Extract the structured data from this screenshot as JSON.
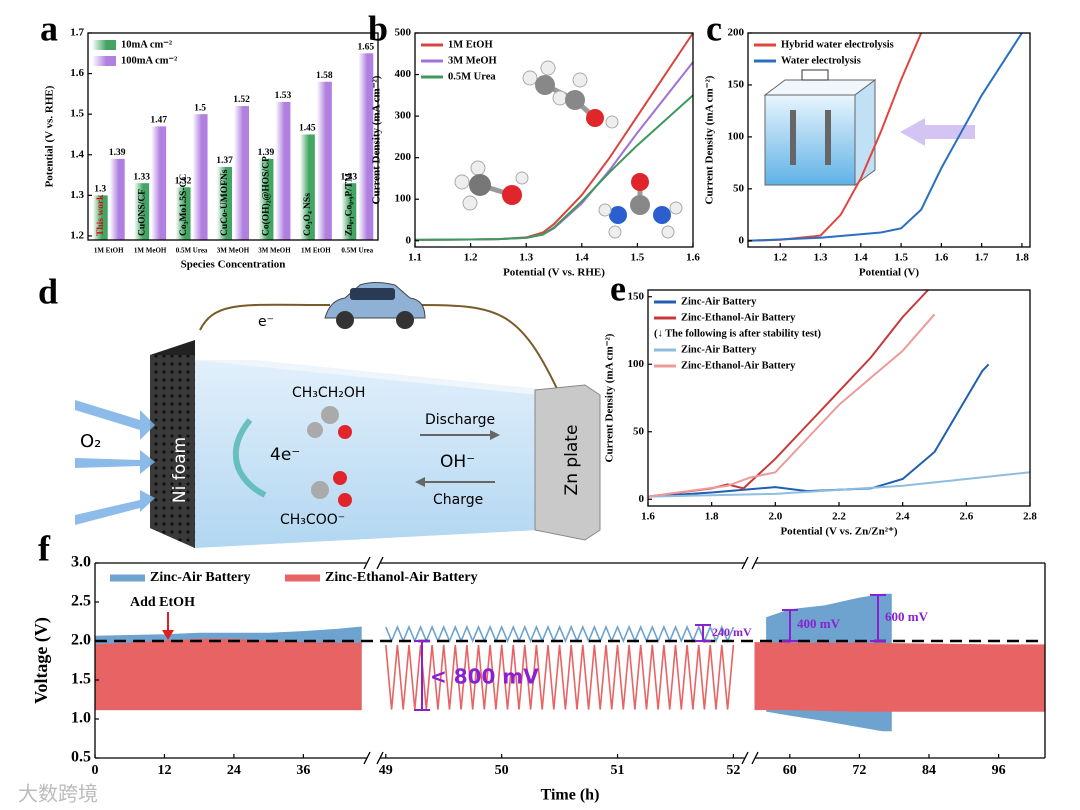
{
  "chart_data": [
    {
      "type": "bar",
      "panel": "a",
      "ylabel": "Potential (V vs. RHE)",
      "xlabel": "Species Concentration",
      "categories": [
        "1M EtOH",
        "1M MeOH",
        "0.5M Urea",
        "3M MeOH",
        "3M MeOH",
        "1M EtOH",
        "0.5M Urea"
      ],
      "bar_labels": [
        "This work",
        "CuONS/CF",
        "Co₃Mo1.5S-CC",
        "CuCo-UMOFNs",
        "Co(OH)₂@HOS/CP",
        "Co₃O₄ NSs",
        "Zn₀.₁Co₀.₉P/TM"
      ],
      "series": [
        {
          "name": "10mA cm⁻²",
          "color": "#43a463",
          "values": [
            1.3,
            1.33,
            1.32,
            1.37,
            1.39,
            1.45,
            1.33
          ]
        },
        {
          "name": "100mA cm⁻²",
          "color": "#b07fe0",
          "values": [
            1.39,
            1.47,
            1.5,
            1.52,
            1.53,
            1.58,
            1.65
          ]
        }
      ],
      "ylim": [
        1.19,
        1.7
      ],
      "yticks": [
        1.2,
        1.3,
        1.4,
        1.5,
        1.6,
        1.7
      ],
      "legend": "upper left"
    },
    {
      "type": "line",
      "panel": "b",
      "ylabel": "Current Density (mA cm⁻²)",
      "xlabel": "Potential (V vs. RHE)",
      "series": [
        {
          "name": "1M EtOH",
          "color": "#d9443f",
          "x": [
            1.1,
            1.2,
            1.25,
            1.3,
            1.33,
            1.35,
            1.4,
            1.45,
            1.5,
            1.55,
            1.6
          ],
          "values": [
            2,
            3,
            4,
            8,
            20,
            40,
            110,
            200,
            300,
            400,
            500
          ]
        },
        {
          "name": "3M MeOH",
          "color": "#a070d8",
          "x": [
            1.1,
            1.2,
            1.25,
            1.3,
            1.33,
            1.35,
            1.4,
            1.45,
            1.5,
            1.55,
            1.6
          ],
          "values": [
            2,
            3,
            4,
            7,
            15,
            30,
            90,
            170,
            260,
            345,
            430
          ]
        },
        {
          "name": "0.5M Urea",
          "color": "#3c9a5a",
          "x": [
            1.1,
            1.2,
            1.25,
            1.3,
            1.33,
            1.35,
            1.4,
            1.45,
            1.5,
            1.55,
            1.6
          ],
          "values": [
            2,
            3,
            4,
            7,
            15,
            32,
            95,
            165,
            230,
            290,
            350
          ]
        }
      ],
      "xlim": [
        1.1,
        1.6
      ],
      "xticks": [
        1.1,
        1.2,
        1.3,
        1.4,
        1.5,
        1.6
      ],
      "ylim": [
        -15,
        500
      ],
      "yticks": [
        0,
        100,
        200,
        300,
        400,
        500
      ],
      "legend": "upper left"
    },
    {
      "type": "line",
      "panel": "c",
      "ylabel": "Current Density (mA cm⁻²)",
      "xlabel": "Potential (V)",
      "series": [
        {
          "name": "Hybrid water electrolysis",
          "color": "#e0463f",
          "x": [
            1.12,
            1.2,
            1.3,
            1.35,
            1.4,
            1.45,
            1.5,
            1.55
          ],
          "values": [
            0,
            1,
            5,
            25,
            60,
            105,
            155,
            200
          ]
        },
        {
          "name": "Water electrolysis",
          "color": "#2a6fc0",
          "x": [
            1.12,
            1.3,
            1.45,
            1.5,
            1.55,
            1.6,
            1.65,
            1.7,
            1.75,
            1.8
          ],
          "values": [
            0,
            3,
            8,
            12,
            30,
            70,
            105,
            140,
            170,
            200
          ]
        }
      ],
      "xlim": [
        1.12,
        1.82
      ],
      "xticks": [
        1.2,
        1.3,
        1.4,
        1.5,
        1.6,
        1.7,
        1.8
      ],
      "ylim": [
        -6,
        200
      ],
      "yticks": [
        0,
        50,
        100,
        150,
        200
      ],
      "legend": "upper left"
    },
    {
      "type": "line",
      "panel": "e",
      "ylabel": "Current Density (mA cm⁻²)",
      "xlabel": "Potential (V vs. Zn/Zn²⁺)",
      "legend_note": "(↓ The following is after stability test)",
      "series": [
        {
          "name": "Zinc-Air Battery",
          "color": "#1f5fb0",
          "x": [
            1.6,
            1.8,
            2.0,
            2.1,
            2.3,
            2.4,
            2.5,
            2.55,
            2.6,
            2.65,
            2.67
          ],
          "values": [
            2,
            5,
            9,
            6,
            8,
            15,
            35,
            55,
            75,
            95,
            100
          ]
        },
        {
          "name": "Zinc-Ethanol-Air Battery",
          "color": "#c8383a",
          "x": [
            1.6,
            1.8,
            1.85,
            1.9,
            2.0,
            2.1,
            2.2,
            2.3,
            2.4,
            2.48
          ],
          "values": [
            2,
            8,
            11,
            8,
            30,
            55,
            80,
            105,
            135,
            155
          ]
        },
        {
          "name": "Zinc-Air Battery",
          "color": "#8fbde0",
          "x": [
            1.6,
            2.0,
            2.4,
            2.8
          ],
          "values": [
            2,
            4,
            10,
            20
          ]
        },
        {
          "name": "Zinc-Ethanol-Air Battery",
          "color": "#ec9a9a",
          "x": [
            1.6,
            1.85,
            1.92,
            2.0,
            2.1,
            2.2,
            2.3,
            2.4,
            2.5
          ],
          "values": [
            2,
            10,
            16,
            20,
            45,
            70,
            90,
            110,
            137
          ]
        }
      ],
      "xlim": [
        1.6,
        2.8
      ],
      "xticks": [
        1.6,
        1.8,
        {
          "value": 2.0,
          "label": "2.0"
        },
        2.2,
        2.4,
        2.6,
        2.8
      ],
      "ylim": [
        -5,
        155
      ],
      "yticks": [
        0,
        50,
        100,
        150
      ],
      "legend": "upper left"
    },
    {
      "type": "band",
      "panel": "f",
      "ylabel": "Voltage (V)",
      "xlabel": "Time (h)",
      "annotations": [
        "Add EtOH",
        "< 800 mV",
        "240 mV",
        "400 mV",
        "600 mV"
      ],
      "segments": [
        {
          "xlim": [
            0,
            47
          ],
          "xticks": [
            0,
            12,
            24,
            36
          ]
        },
        {
          "xlim": [
            48.95,
            52.1
          ],
          "xticks": [
            49,
            50,
            51,
            52
          ]
        },
        {
          "xlim": [
            54,
            104
          ],
          "xticks": [
            60,
            72,
            84,
            96
          ]
        }
      ],
      "ylim": [
        0.5,
        3.0
      ],
      "yticks": [
        0.5,
        {
          "value": 1.0,
          "label": "1.0"
        },
        1.5,
        {
          "value": 2.0,
          "label": "2.0"
        },
        2.5,
        {
          "value": 3.0,
          "label": "3.0"
        }
      ],
      "hline": 2.0,
      "legend": "upper left",
      "series": [
        {
          "name": "Zinc-Air Battery",
          "color": "#6ea3cf",
          "x": [
            0,
            6,
            12,
            18,
            24,
            30,
            36,
            42,
            46,
            47,
            56,
            60,
            66,
            72,
            76,
            77.5
          ],
          "values": [
            2.06,
            2.07,
            2.08,
            2.1,
            2.1,
            2.1,
            2.12,
            2.15,
            2.18,
            null,
            2.3,
            2.4,
            2.45,
            2.55,
            2.6,
            2.6
          ],
          "lower": [
            1.12,
            1.12,
            1.12,
            1.12,
            1.12,
            1.12,
            1.12,
            1.12,
            1.12,
            null,
            1.1,
            1.05,
            0.98,
            0.9,
            0.85,
            0.85
          ],
          "wave": {
            "x": [
              49,
              49.05,
              49.1,
              49.15,
              49.2,
              49.25,
              49.3,
              49.35,
              49.4,
              49.45,
              49.5,
              49.55,
              49.6,
              49.65,
              49.7,
              49.75,
              49.8,
              49.85,
              49.9,
              49.95,
              50,
              50.05,
              50.1,
              50.15,
              50.2,
              50.25,
              50.3,
              50.35,
              50.4,
              50.45,
              50.5,
              50.55,
              50.6,
              50.65,
              50.7,
              50.75,
              50.8,
              50.85,
              50.9,
              50.95,
              51,
              51.05,
              51.1,
              51.15,
              51.2,
              51.25,
              51.3,
              51.35,
              51.4,
              51.45,
              51.5,
              51.55,
              51.6,
              51.65,
              51.7,
              51.75,
              51.8,
              51.85,
              51.9,
              51.95,
              52
            ],
            "values": [
              2.18,
              2.0,
              2.18,
              2.0,
              2.18,
              2.0,
              2.18,
              2.0,
              2.18,
              2.0,
              2.18,
              2.0,
              2.18,
              2.0,
              2.18,
              2.0,
              2.18,
              2.0,
              2.18,
              2.0,
              2.18,
              2.0,
              2.18,
              2.0,
              2.18,
              2.0,
              2.18,
              2.0,
              2.18,
              2.0,
              2.18,
              2.0,
              2.18,
              2.0,
              2.18,
              2.0,
              2.18,
              2.0,
              2.18,
              2.0,
              2.18,
              2.0,
              2.18,
              2.0,
              2.18,
              2.0,
              2.18,
              2.0,
              2.18,
              2.0,
              2.18,
              2.0,
              2.18,
              2.0,
              2.18,
              2.0,
              2.18,
              2.0,
              2.18,
              2.0,
              2.18
            ]
          }
        },
        {
          "name": "Zinc-Ethanol-Air Battery",
          "color": "#e86464",
          "x": [
            0,
            6,
            12,
            18,
            24,
            30,
            36,
            42,
            46,
            47,
            54,
            60,
            72,
            84,
            96,
            104
          ],
          "values": [
            1.95,
            1.97,
            2.0,
            2.02,
            2.02,
            2.0,
            1.98,
            1.97,
            1.97,
            null,
            1.98,
            1.97,
            1.97,
            1.96,
            1.95,
            1.95
          ],
          "lower": [
            1.12,
            1.12,
            1.12,
            1.12,
            1.12,
            1.12,
            1.12,
            1.12,
            1.12,
            null,
            1.12,
            1.12,
            1.1,
            1.1,
            1.1,
            1.1
          ],
          "wave": {
            "x": [
              49,
              49.05,
              49.1,
              49.15,
              49.2,
              49.25,
              49.3,
              49.35,
              49.4,
              49.45,
              49.5,
              49.55,
              49.6,
              49.65,
              49.7,
              49.75,
              49.8,
              49.85,
              49.9,
              49.95,
              50,
              50.05,
              50.1,
              50.15,
              50.2,
              50.25,
              50.3,
              50.35,
              50.4,
              50.45,
              50.5,
              50.55,
              50.6,
              50.65,
              50.7,
              50.75,
              50.8,
              50.85,
              50.9,
              50.95,
              51,
              51.05,
              51.1,
              51.15,
              51.2,
              51.25,
              51.3,
              51.35,
              51.4,
              51.45,
              51.5,
              51.55,
              51.6,
              51.65,
              51.7,
              51.75,
              51.8,
              51.85,
              51.9,
              51.95,
              52
            ],
            "values": [
              1.95,
              1.12,
              1.95,
              1.12,
              1.95,
              1.12,
              1.95,
              1.12,
              1.95,
              1.12,
              1.95,
              1.12,
              1.95,
              1.12,
              1.95,
              1.12,
              1.95,
              1.12,
              1.95,
              1.12,
              1.95,
              1.12,
              1.95,
              1.12,
              1.95,
              1.12,
              1.95,
              1.12,
              1.95,
              1.12,
              1.95,
              1.12,
              1.95,
              1.12,
              1.95,
              1.12,
              1.95,
              1.12,
              1.95,
              1.12,
              1.95,
              1.12,
              1.95,
              1.12,
              1.95,
              1.12,
              1.95,
              1.12,
              1.95,
              1.12,
              1.95,
              1.12,
              1.95,
              1.12,
              1.95,
              1.12,
              1.95,
              1.12,
              1.95,
              1.12,
              1.95
            ]
          }
        }
      ]
    }
  ],
  "diagram": {
    "panel": "d",
    "electron": "e⁻",
    "fuel": "CH₃CH₂OH",
    "discharge": "Discharge",
    "transfer": "4e⁻",
    "ion": "OH⁻",
    "charge": "Charge",
    "product": "CH₃COO⁻",
    "anode": "Ni foam",
    "cathode": "Zn plate",
    "gas": "O₂"
  },
  "watermark": "大数跨境"
}
